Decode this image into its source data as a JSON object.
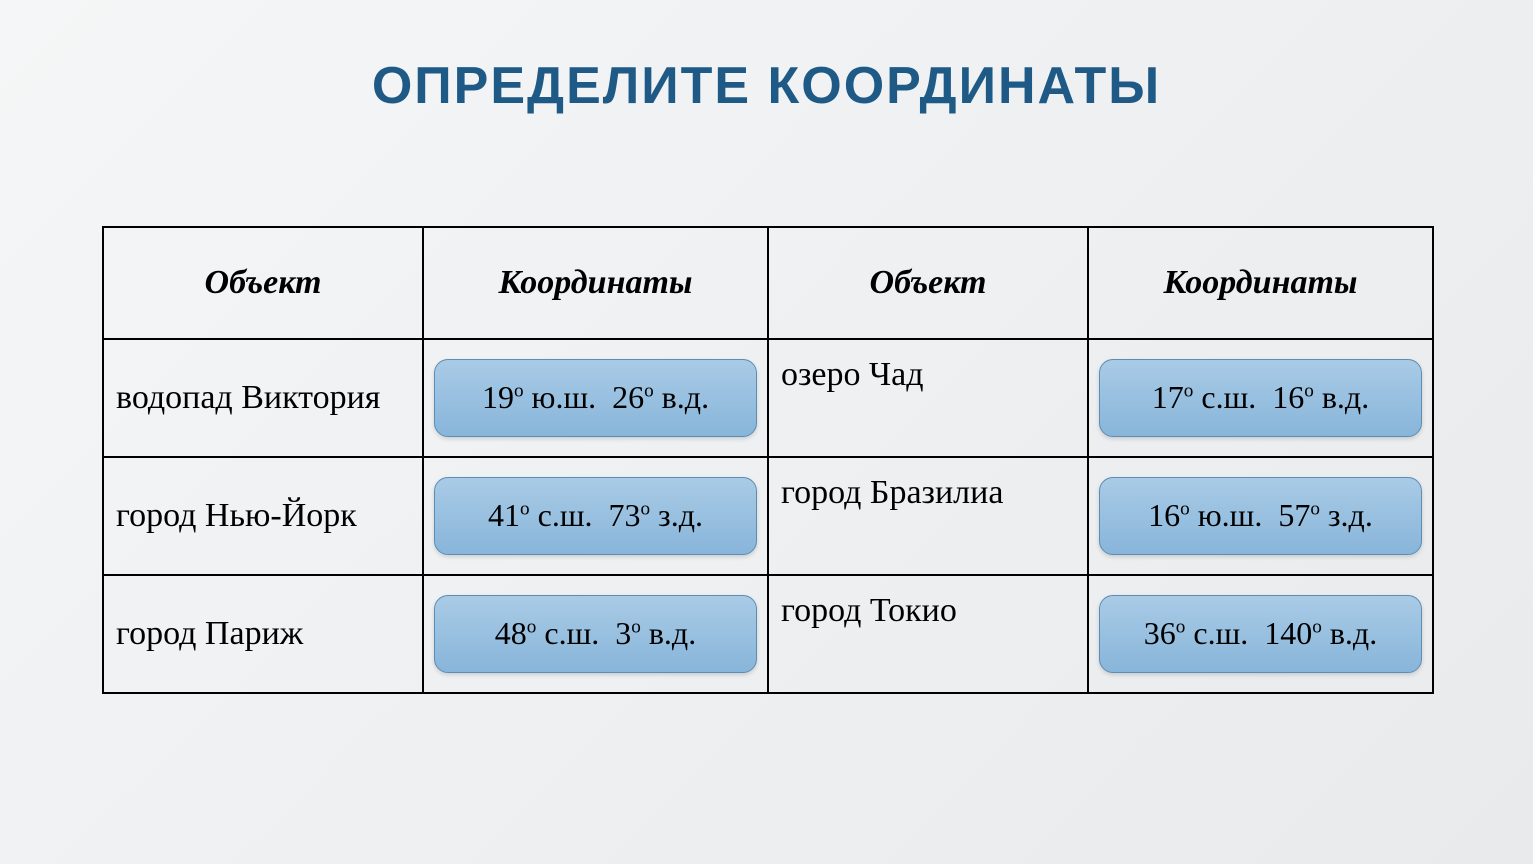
{
  "title": "ОПРЕДЕЛИТЕ КООРДИНАТЫ",
  "title_color": "#1f5a87",
  "title_fontsize": 52,
  "background_gradient": [
    "#f5f6f7",
    "#e8eaec"
  ],
  "box_fill_gradient": [
    "#a9cbe6",
    "#88b5da"
  ],
  "box_border_color": "#5b8db5",
  "box_border_radius": 14,
  "cell_border_color": "#000000",
  "font_family_title": "Century Gothic",
  "font_family_body": "Times New Roman",
  "body_fontsize": 34,
  "coord_fontsize": 32,
  "columns": [
    "Объект",
    "Координаты",
    "Объект",
    "Координаты"
  ],
  "rows": [
    {
      "obj1": "водопад Виктория",
      "coord1": {
        "lat_deg": 19,
        "lat_dir": "ю.ш.",
        "lon_deg": 26,
        "lon_dir": "в.д."
      },
      "obj2": "озеро Чад",
      "coord2": {
        "lat_deg": 17,
        "lat_dir": "с.ш.",
        "lon_deg": 16,
        "lon_dir": "в.д."
      }
    },
    {
      "obj1": "город  Нью-Йорк",
      "coord1": {
        "lat_deg": 41,
        "lat_dir": "с.ш.",
        "lon_deg": 73,
        "lon_dir": "з.д."
      },
      "obj2": "город  Бразилиа",
      "coord2": {
        "lat_deg": 16,
        "lat_dir": "ю.ш.",
        "lon_deg": 57,
        "lon_dir": "з.д."
      }
    },
    {
      "obj1": "город  Париж",
      "coord1": {
        "lat_deg": 48,
        "lat_dir": "с.ш.",
        "lon_deg": 3,
        "lon_dir": "в.д."
      },
      "obj2": "город Токио",
      "coord2": {
        "lat_deg": 36,
        "lat_dir": "с.ш.",
        "lon_deg": 140,
        "lon_dir": "в.д."
      }
    }
  ]
}
